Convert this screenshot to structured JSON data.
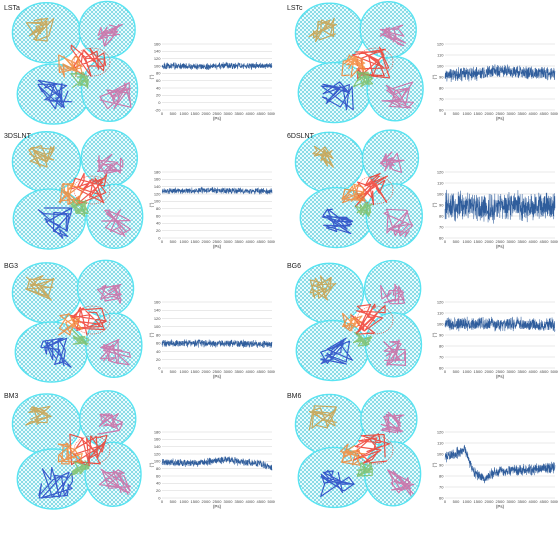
{
  "colors": {
    "mesh_cyan": "#59e4f2",
    "mesh_cyan_dark": "#2bbbd0",
    "ribbon_red": "#ee3b2f",
    "ribbon_orange": "#f28a3a",
    "ribbon_gold": "#c9a04a",
    "ribbon_pink": "#cc6aa3",
    "ribbon_blue": "#2445c6",
    "ribbon_green": "#7fbf6a",
    "series_blue": "#2f5d9c",
    "grid": "#c8c8c8"
  },
  "panels": [
    {
      "label": "LSTa"
    },
    {
      "label": "LSTc"
    },
    {
      "label": "3DSLNT"
    },
    {
      "label": "6DSLNT"
    },
    {
      "label": "BG3"
    },
    {
      "label": "BG6"
    },
    {
      "label": "BM3"
    },
    {
      "label": "BM6"
    }
  ],
  "chart_data": [
    {
      "type": "line",
      "panel": "LSTa",
      "xlabel": "(Ps)",
      "ylabel": "(°)",
      "x_ticks": [
        "0",
        "500",
        "1000",
        "1500",
        "2000",
        "2500",
        "3000",
        "3500",
        "4000",
        "4500",
        "5000"
      ],
      "y_ticks": [
        "160",
        "140",
        "120",
        "100",
        "80",
        "60",
        "40",
        "20",
        "0",
        "-20"
      ],
      "xlim": [
        0,
        5000
      ],
      "ylim": [
        -20,
        160
      ],
      "series": [
        {
          "profile": [
            [
              0,
              100
            ],
            [
              1000,
              100
            ],
            [
              2000,
              98
            ],
            [
              3000,
              102
            ],
            [
              4000,
              100
            ],
            [
              5000,
              101
            ]
          ],
          "noise": 9
        }
      ]
    },
    {
      "type": "line",
      "panel": "LSTc",
      "xlabel": "(Ps)",
      "ylabel": "(°)",
      "x_ticks": [
        "0",
        "500",
        "1000",
        "1500",
        "2000",
        "2500",
        "3000",
        "3500",
        "4000",
        "4500",
        "5000"
      ],
      "y_ticks": [
        "120",
        "110",
        "100",
        "90",
        "80",
        "70",
        "60"
      ],
      "xlim": [
        0,
        5000
      ],
      "ylim": [
        60,
        120
      ],
      "series": [
        {
          "profile": [
            [
              0,
              92
            ],
            [
              1500,
              93
            ],
            [
              2500,
              96
            ],
            [
              3500,
              94
            ],
            [
              5000,
              93
            ]
          ],
          "noise": 6
        }
      ]
    },
    {
      "type": "line",
      "panel": "3DSLNT",
      "xlabel": "(Ps)",
      "ylabel": "(°)",
      "x_ticks": [
        "0",
        "500",
        "1000",
        "1500",
        "2000",
        "2500",
        "3000",
        "3500",
        "4000",
        "4500",
        "5000"
      ],
      "y_ticks": [
        "180",
        "160",
        "140",
        "120",
        "100",
        "80",
        "60",
        "40",
        "20",
        "0"
      ],
      "xlim": [
        0,
        5000
      ],
      "ylim": [
        0,
        180
      ],
      "series": [
        {
          "profile": [
            [
              0,
              128
            ],
            [
              2000,
              130
            ],
            [
              3500,
              129
            ],
            [
              5000,
              127
            ]
          ],
          "noise": 8
        }
      ]
    },
    {
      "type": "line",
      "panel": "6DSLNT",
      "xlabel": "(Ps)",
      "ylabel": "(°)",
      "x_ticks": [
        "0",
        "500",
        "1000",
        "1500",
        "2000",
        "2500",
        "3000",
        "3500",
        "4000",
        "4500",
        "5000"
      ],
      "y_ticks": [
        "120",
        "110",
        "100",
        "90",
        "80",
        "70",
        "60"
      ],
      "xlim": [
        0,
        5000
      ],
      "ylim": [
        60,
        120
      ],
      "series": [
        {
          "profile": [
            [
              0,
              90
            ],
            [
              1000,
              88
            ],
            [
              2000,
              86
            ],
            [
              3000,
              90
            ],
            [
              4000,
              88
            ],
            [
              5000,
              90
            ]
          ],
          "noise": 13
        }
      ]
    },
    {
      "type": "line",
      "panel": "BG3",
      "xlabel": "(Ps)",
      "ylabel": "(°)",
      "x_ticks": [
        "0",
        "500",
        "1000",
        "1500",
        "2000",
        "2500",
        "3000",
        "3500",
        "4000",
        "4500",
        "5000"
      ],
      "y_ticks": [
        "160",
        "140",
        "120",
        "100",
        "80",
        "60",
        "40",
        "20",
        "0"
      ],
      "xlim": [
        0,
        5000
      ],
      "ylim": [
        0,
        160
      ],
      "series": [
        {
          "profile": [
            [
              0,
              60
            ],
            [
              2500,
              60
            ],
            [
              5000,
              58
            ]
          ],
          "noise": 9
        }
      ]
    },
    {
      "type": "line",
      "panel": "BG6",
      "xlabel": "(Ps)",
      "ylabel": "(°)",
      "x_ticks": [
        "0",
        "500",
        "1000",
        "1500",
        "2000",
        "2500",
        "3000",
        "3500",
        "4000",
        "4500",
        "5000"
      ],
      "y_ticks": [
        "120",
        "110",
        "100",
        "90",
        "80",
        "70",
        "60"
      ],
      "xlim": [
        0,
        5000
      ],
      "ylim": [
        60,
        120
      ],
      "series": [
        {
          "profile": [
            [
              0,
              100
            ],
            [
              2500,
              100
            ],
            [
              5000,
              99
            ]
          ],
          "noise": 6
        }
      ]
    },
    {
      "type": "line",
      "panel": "BM3",
      "xlabel": "(Ps)",
      "ylabel": "(°)",
      "x_ticks": [
        "0",
        "500",
        "1000",
        "1500",
        "2000",
        "2500",
        "3000",
        "3500",
        "4000",
        "4500",
        "5000"
      ],
      "y_ticks": [
        "180",
        "160",
        "140",
        "120",
        "100",
        "80",
        "60",
        "40",
        "20",
        "0"
      ],
      "xlim": [
        0,
        5000
      ],
      "ylim": [
        0,
        180
      ],
      "series": [
        {
          "profile": [
            [
              0,
              98
            ],
            [
              1500,
              95
            ],
            [
              2200,
              100
            ],
            [
              3000,
              105
            ],
            [
              3600,
              98
            ],
            [
              4500,
              95
            ],
            [
              5000,
              80
            ]
          ],
          "noise": 10
        }
      ]
    },
    {
      "type": "line",
      "panel": "BM6",
      "xlabel": "(Ps)",
      "ylabel": "(°)",
      "x_ticks": [
        "0",
        "500",
        "1000",
        "1500",
        "2000",
        "2500",
        "3000",
        "3500",
        "4000",
        "4500",
        "5000"
      ],
      "y_ticks": [
        "120",
        "110",
        "100",
        "90",
        "80",
        "70",
        "60"
      ],
      "xlim": [
        0,
        5000
      ],
      "ylim": [
        60,
        120
      ],
      "series": [
        {
          "profile": [
            [
              0,
              98
            ],
            [
              500,
              100
            ],
            [
              900,
              105
            ],
            [
              1200,
              88
            ],
            [
              1500,
              80
            ],
            [
              1800,
              78
            ],
            [
              2300,
              84
            ],
            [
              3000,
              85
            ],
            [
              4000,
              86
            ],
            [
              5000,
              88
            ]
          ],
          "noise": 5
        }
      ]
    }
  ]
}
